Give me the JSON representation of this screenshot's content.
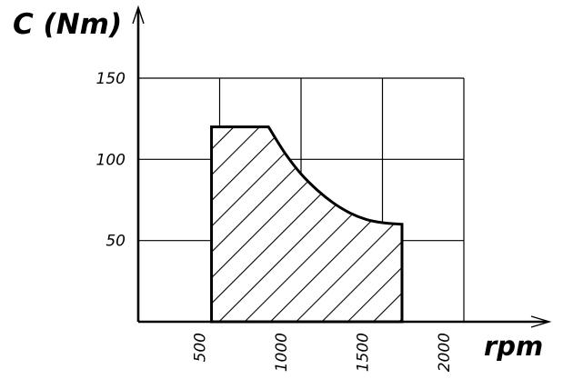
{
  "chart_data": {
    "type": "area",
    "ylabel": "C (Nm)",
    "xlabel": "rpm",
    "xlim": [
      0,
      2000
    ],
    "ylim": [
      0,
      150
    ],
    "x_ticks": [
      {
        "value": 500,
        "label": "500"
      },
      {
        "value": 1000,
        "label": "1000"
      },
      {
        "value": 1500,
        "label": "1500"
      },
      {
        "value": 2000,
        "label": "2000"
      }
    ],
    "y_ticks": [
      {
        "value": 50,
        "label": "50"
      },
      {
        "value": 100,
        "label": "100"
      },
      {
        "value": 150,
        "label": "150"
      }
    ],
    "grid": true,
    "fill_pattern": "diagonal-hatch",
    "region": [
      {
        "x": 450,
        "y": 0
      },
      {
        "x": 450,
        "y": 120
      },
      {
        "x": 800,
        "y": 120
      },
      {
        "x": 900,
        "y": 104
      },
      {
        "x": 1000,
        "y": 91
      },
      {
        "x": 1100,
        "y": 81
      },
      {
        "x": 1200,
        "y": 73
      },
      {
        "x": 1300,
        "y": 67
      },
      {
        "x": 1400,
        "y": 63
      },
      {
        "x": 1500,
        "y": 61
      },
      {
        "x": 1620,
        "y": 60
      },
      {
        "x": 1620,
        "y": 0
      }
    ]
  }
}
